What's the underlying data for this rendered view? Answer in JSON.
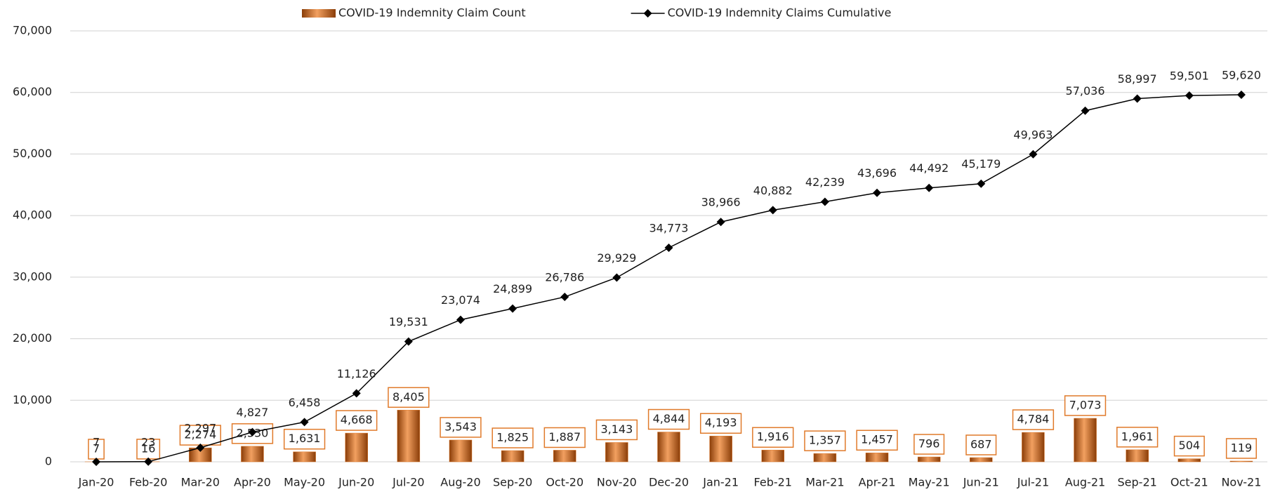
{
  "chart_data": {
    "type": "bar_line",
    "categories": [
      "Jan-20",
      "Feb-20",
      "Mar-20",
      "Apr-20",
      "May-20",
      "Jun-20",
      "Jul-20",
      "Aug-20",
      "Sep-20",
      "Oct-20",
      "Nov-20",
      "Dec-20",
      "Jan-21",
      "Feb-21",
      "Mar-21",
      "Apr-21",
      "May-21",
      "Jun-21",
      "Jul-21",
      "Aug-21",
      "Sep-21",
      "Oct-21",
      "Nov-21"
    ],
    "series": [
      {
        "name": "COVID-19 Indemnity Claim Count",
        "type": "bar",
        "color": "#e07a2a",
        "values": [
          7,
          16,
          2274,
          2530,
          1631,
          4668,
          8405,
          3543,
          1825,
          1887,
          3143,
          4844,
          4193,
          1916,
          1357,
          1457,
          796,
          687,
          4784,
          7073,
          1961,
          504,
          119
        ],
        "value_labels": [
          "7",
          "16",
          "2,274",
          "2,530",
          "1,631",
          "4,668",
          "8,405",
          "3,543",
          "1,825",
          "1,887",
          "3,143",
          "4,844",
          "4,193",
          "1,916",
          "1,357",
          "1,457",
          "796",
          "687",
          "4,784",
          "7,073",
          "1,961",
          "504",
          "119"
        ]
      },
      {
        "name": "COVID-19 Indemnity Claims Cumulative",
        "type": "line",
        "color": "#000000",
        "values": [
          7,
          23,
          2297,
          4827,
          6458,
          11126,
          19531,
          23074,
          24899,
          26786,
          29929,
          34773,
          38966,
          40882,
          42239,
          43696,
          44492,
          45179,
          49963,
          57036,
          58997,
          59501,
          59620
        ],
        "value_labels": [
          "7",
          "23",
          "2,297",
          "4,827",
          "6,458",
          "11,126",
          "19,531",
          "23,074",
          "24,899",
          "26,786",
          "29,929",
          "34,773",
          "38,966",
          "40,882",
          "42,239",
          "43,696",
          "44,492",
          "45,179",
          "49,963",
          "57,036",
          "58,997",
          "59,501",
          "59,620"
        ]
      }
    ],
    "ylim": [
      0,
      70000
    ],
    "yticks": [
      0,
      {
        "value": 10000,
        "label": "10,000"
      },
      {
        "value": 20000,
        "label": "20,000"
      },
      {
        "value": 30000,
        "label": "30,000"
      },
      {
        "value": 40000,
        "label": "40,000"
      },
      {
        "value": 50000,
        "label": "50,000"
      },
      {
        "value": 60000,
        "label": "60,000"
      },
      {
        "value": 70000,
        "label": "70,000"
      }
    ],
    "grid": true,
    "legend": "top"
  }
}
